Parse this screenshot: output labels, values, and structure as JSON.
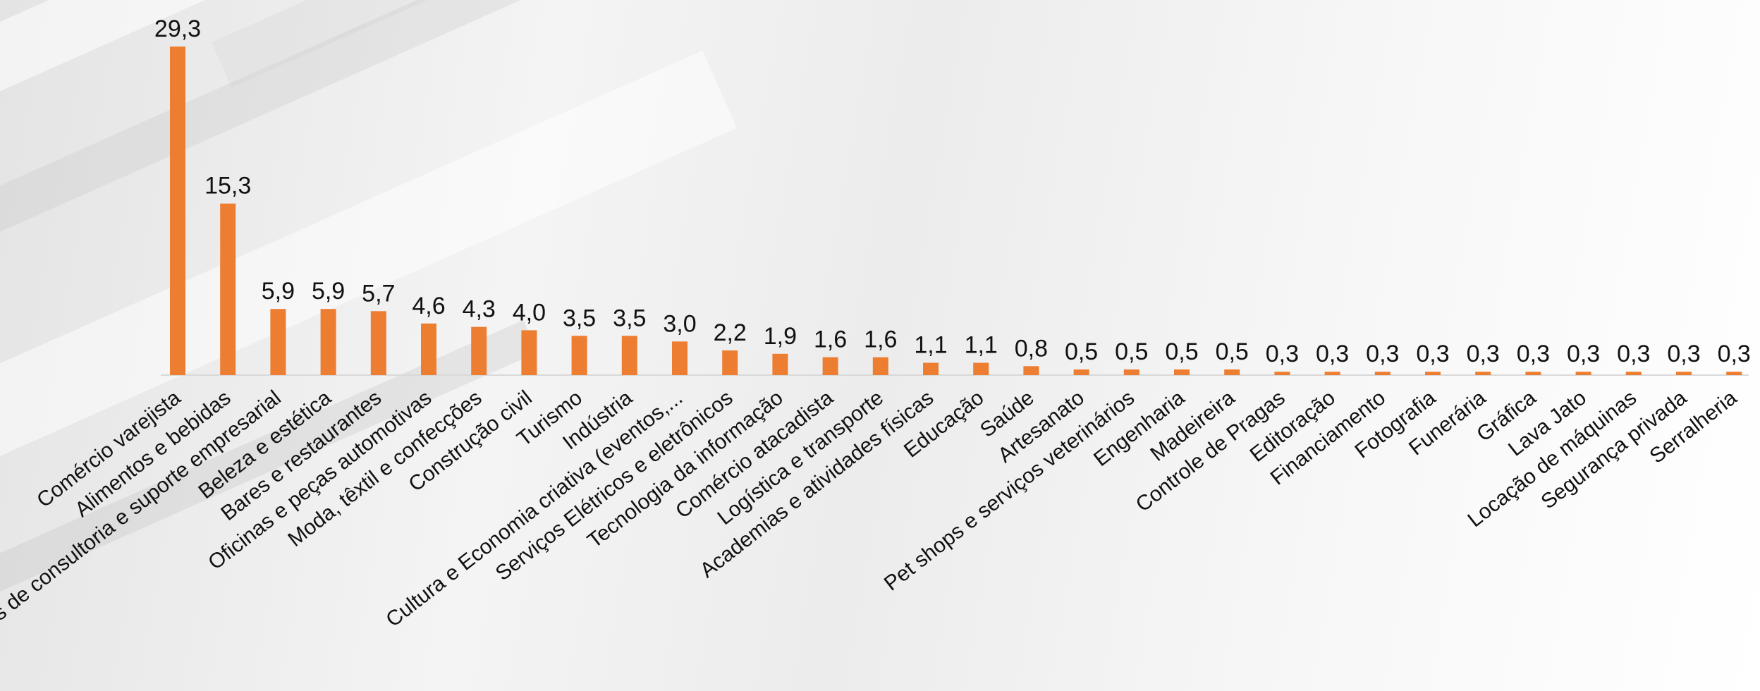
{
  "chart_data": {
    "type": "bar",
    "bar_color": "#ED7D31",
    "categories": [
      "Comércio varejista",
      "Alimentos e bebidas",
      "Serviços de consultoria e suporte empresarial",
      "Beleza e estética",
      "Bares e restaurantes",
      "Oficinas e peças automotivas",
      "Moda, têxtil e confecções",
      "Construção civil",
      "Turismo",
      "Indústria",
      "Cultura e Economia criativa (eventos,...",
      "Serviços Elétricos e eletrônicos",
      "Tecnologia da informação",
      "Comércio atacadista",
      "Logística e transporte",
      "Academias e atividades físicas",
      "Educação",
      "Saúde",
      "Artesanato",
      "Pet shops e serviços veterinários",
      "Engenharia",
      "Madeireira",
      "Controle de Pragas",
      "Editoração",
      "Financiamento",
      "Fotografia",
      "Funerária",
      "Gráfica",
      "Lava Jato",
      "Locação de máquinas",
      "Segurança privada",
      "Serralheria"
    ],
    "values": [
      29.3,
      15.3,
      5.9,
      5.9,
      5.7,
      4.6,
      4.3,
      4.0,
      3.5,
      3.5,
      3.0,
      2.2,
      1.9,
      1.6,
      1.6,
      1.1,
      1.1,
      0.8,
      0.5,
      0.5,
      0.5,
      0.5,
      0.3,
      0.3,
      0.3,
      0.3,
      0.3,
      0.3,
      0.3,
      0.3,
      0.3,
      0.3
    ],
    "value_labels": [
      "29,3",
      "15,3",
      "5,9",
      "5,9",
      "5,7",
      "4,6",
      "4,3",
      "4,0",
      "3,5",
      "3,5",
      "3,0",
      "2,2",
      "1,9",
      "1,6",
      "1,6",
      "1,1",
      "1,1",
      "0,8",
      "0,5",
      "0,5",
      "0,5",
      "0,5",
      "0,3",
      "0,3",
      "0,3",
      "0,3",
      "0,3",
      "0,3",
      "0,3",
      "0,3",
      "0,3",
      "0,3"
    ],
    "ylim": [
      0,
      29.3
    ],
    "grid": false,
    "legend": false
  }
}
